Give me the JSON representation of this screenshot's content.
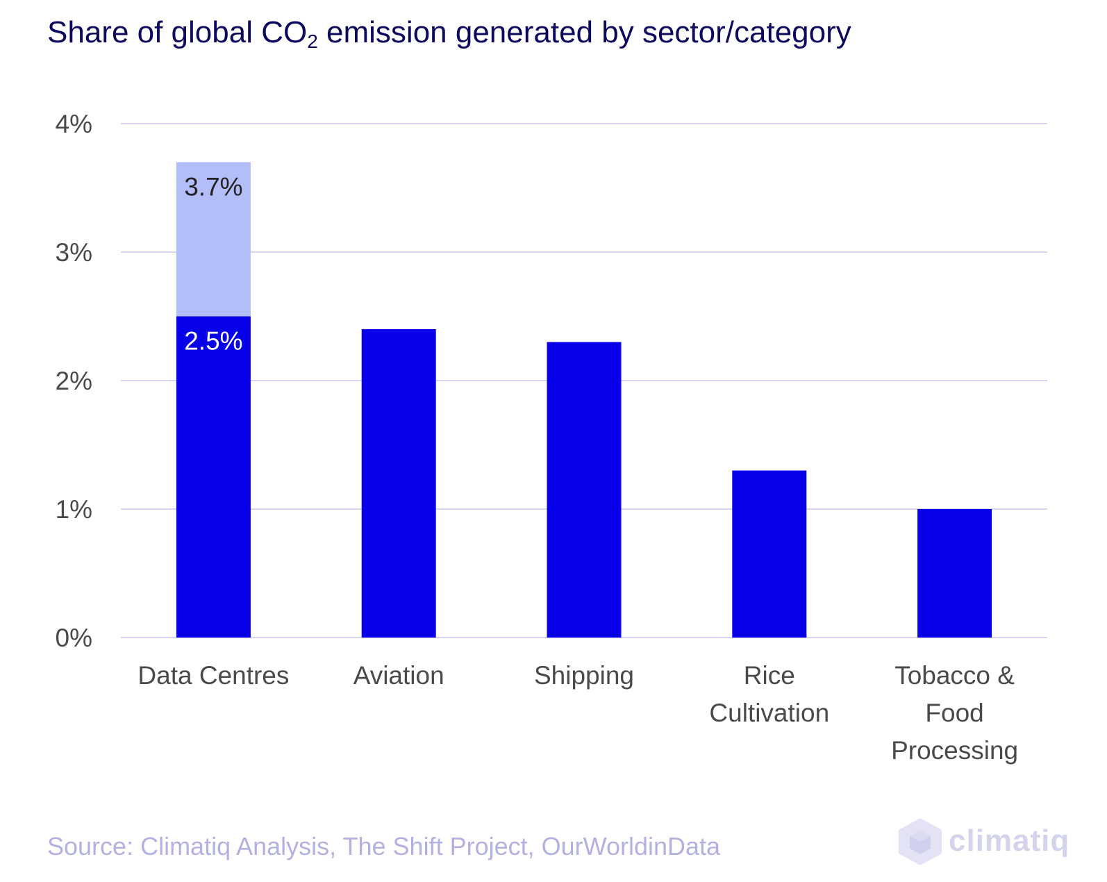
{
  "title": {
    "prefix": "Share of global CO",
    "subscript": "2",
    "suffix": " emission generated by sector/category"
  },
  "chart_data": {
    "type": "bar",
    "categories": [
      "Data Centres",
      "Aviation",
      "Shipping",
      "Rice Cultivation",
      "Tobacco & Food Processing"
    ],
    "category_lines": [
      [
        "Data Centres"
      ],
      [
        "Aviation"
      ],
      [
        "Shipping"
      ],
      [
        "Rice",
        "Cultivation"
      ],
      [
        "Tobacco &",
        "Food",
        "Processing"
      ]
    ],
    "series": [
      {
        "values": [
          2.5,
          2.4,
          2.3,
          1.3,
          1.0
        ],
        "color": "#0800e8"
      },
      {
        "values": [
          1.2,
          0,
          0,
          0,
          0
        ],
        "color": "#b3bdf7"
      }
    ],
    "data_labels": [
      {
        "category": "Data Centres",
        "value": 3.7,
        "text": "3.7%"
      },
      {
        "category": "Data Centres",
        "value": 2.5,
        "text": "2.5%"
      }
    ],
    "y_ticks": [
      "0%",
      "1%",
      "2%",
      "3%",
      "4%"
    ],
    "ylim": [
      0,
      4
    ],
    "grid": true,
    "xlabel": "",
    "ylabel": ""
  },
  "source": "Source: Climatiq Analysis, The Shift Project, OurWorldinData",
  "logo": {
    "text": "climatiq",
    "icon": "cube-icon"
  },
  "colors": {
    "title": "#0d0a5e",
    "bar_primary": "#0800e8",
    "bar_secondary": "#b3bdf7",
    "grid": "#c9c8ee",
    "source": "#b3b1e0",
    "axis_text": "#4a4a4a"
  }
}
